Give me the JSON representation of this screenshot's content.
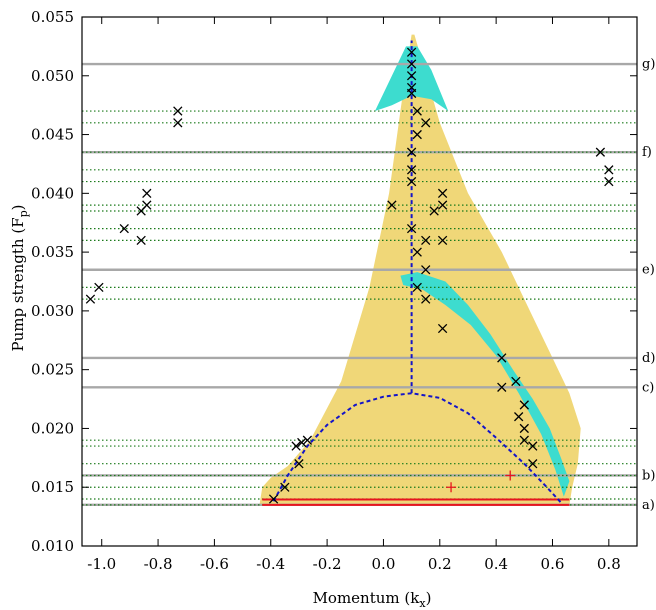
{
  "chart_data": {
    "type": "scatter",
    "xlabel": "Momentum (k",
    "xlabel_sub": "x",
    "xlabel_end": ")",
    "ylabel": "Pump strength (F",
    "ylabel_sub": "p",
    "ylabel_end": ")",
    "xlim": [
      -1.07,
      0.9
    ],
    "ylim": [
      0.01,
      0.055
    ],
    "xticks": [
      -1.0,
      -0.8,
      -0.6,
      -0.4,
      -0.2,
      0.0,
      0.2,
      0.4,
      0.6,
      0.8
    ],
    "xtick_labels": [
      "-1.0",
      "-0.8",
      "-0.6",
      "-0.4",
      "-0.2",
      "0.0",
      "0.2",
      "0.4",
      "0.6",
      "0.8"
    ],
    "yticks": [
      0.01,
      0.015,
      0.02,
      0.025,
      0.03,
      0.035,
      0.04,
      0.045,
      0.05,
      0.055
    ],
    "ytick_labels": [
      "0.010",
      "0.015",
      "0.020",
      "0.025",
      "0.030",
      "0.035",
      "0.040",
      "0.045",
      "0.050",
      "0.055"
    ],
    "colors": {
      "region": "#f0d778",
      "teal": "#3ddccf",
      "blue_dashed": "#1414c8",
      "gray_lines": "#a8a8a8",
      "green_dotted": "#1a7a1a",
      "markers": "#000000",
      "red": "#e8141e"
    },
    "stable_region": [
      [
        -0.44,
        0.0135
      ],
      [
        -0.43,
        0.015
      ],
      [
        -0.4,
        0.0158
      ],
      [
        -0.34,
        0.0168
      ],
      [
        -0.26,
        0.019
      ],
      [
        -0.15,
        0.024
      ],
      [
        -0.05,
        0.032
      ],
      [
        0.02,
        0.04
      ],
      [
        0.06,
        0.047
      ],
      [
        0.09,
        0.052
      ],
      [
        0.1,
        0.0535
      ],
      [
        0.11,
        0.0535
      ],
      [
        0.14,
        0.051
      ],
      [
        0.2,
        0.046
      ],
      [
        0.3,
        0.04
      ],
      [
        0.42,
        0.035
      ],
      [
        0.52,
        0.03
      ],
      [
        0.6,
        0.026
      ],
      [
        0.66,
        0.023
      ],
      [
        0.7,
        0.02
      ],
      [
        0.69,
        0.017
      ],
      [
        0.67,
        0.015
      ],
      [
        0.66,
        0.0135
      ]
    ],
    "teal_regions": [
      [
        [
          -0.03,
          0.047
        ],
        [
          0.03,
          0.05
        ],
        [
          0.08,
          0.0525
        ],
        [
          0.12,
          0.0525
        ],
        [
          0.17,
          0.0505
        ],
        [
          0.23,
          0.047
        ],
        [
          0.17,
          0.048
        ],
        [
          0.1,
          0.0483
        ],
        [
          0.03,
          0.0475
        ]
      ],
      [
        [
          0.06,
          0.033
        ],
        [
          0.12,
          0.0333
        ],
        [
          0.22,
          0.0325
        ],
        [
          0.3,
          0.0305
        ],
        [
          0.38,
          0.028
        ],
        [
          0.46,
          0.025
        ],
        [
          0.53,
          0.0225
        ],
        [
          0.59,
          0.02
        ],
        [
          0.63,
          0.0175
        ],
        [
          0.66,
          0.0155
        ],
        [
          0.64,
          0.0142
        ],
        [
          0.61,
          0.0165
        ],
        [
          0.56,
          0.0195
        ],
        [
          0.48,
          0.023
        ],
        [
          0.4,
          0.0262
        ],
        [
          0.31,
          0.0288
        ],
        [
          0.22,
          0.0305
        ],
        [
          0.14,
          0.0318
        ],
        [
          0.07,
          0.0322
        ]
      ]
    ],
    "blue_vertical": {
      "x": 0.1,
      "y": [
        0.023,
        0.053
      ]
    },
    "blue_arc": [
      [
        -0.39,
        0.0138
      ],
      [
        -0.34,
        0.016
      ],
      [
        -0.27,
        0.0185
      ],
      [
        -0.2,
        0.0203
      ],
      [
        -0.1,
        0.022
      ],
      [
        0.0,
        0.0227
      ],
      [
        0.1,
        0.023
      ],
      [
        0.2,
        0.0226
      ],
      [
        0.3,
        0.0213
      ],
      [
        0.4,
        0.0192
      ],
      [
        0.5,
        0.017
      ],
      [
        0.58,
        0.015
      ],
      [
        0.63,
        0.0137
      ]
    ],
    "gray_lines": [
      0.051,
      0.0435,
      0.0335,
      0.026,
      0.0235,
      0.016,
      0.0135
    ],
    "green_lines": [
      0.047,
      0.046,
      0.0435,
      0.042,
      0.041,
      0.039,
      0.0385,
      0.037,
      0.036,
      0.032,
      0.031,
      0.019,
      0.0185,
      0.017,
      0.016,
      0.015,
      0.014,
      0.0135
    ],
    "x_markers": [
      [
        0.1,
        0.052
      ],
      [
        0.1,
        0.051
      ],
      [
        0.1,
        0.05
      ],
      [
        0.1,
        0.049
      ],
      [
        0.1,
        0.0485
      ],
      [
        0.12,
        0.047
      ],
      [
        0.15,
        0.046
      ],
      [
        0.12,
        0.045
      ],
      [
        0.1,
        0.0435
      ],
      [
        0.1,
        0.042
      ],
      [
        0.1,
        0.041
      ],
      [
        0.03,
        0.039
      ],
      [
        0.21,
        0.04
      ],
      [
        0.21,
        0.039
      ],
      [
        0.18,
        0.0385
      ],
      [
        0.1,
        0.037
      ],
      [
        0.21,
        0.036
      ],
      [
        0.15,
        0.036
      ],
      [
        0.12,
        0.035
      ],
      [
        0.15,
        0.0335
      ],
      [
        0.12,
        0.032
      ],
      [
        0.15,
        0.031
      ],
      [
        0.21,
        0.0285
      ],
      [
        0.42,
        0.026
      ],
      [
        0.47,
        0.024
      ],
      [
        0.42,
        0.0235
      ],
      [
        0.5,
        0.022
      ],
      [
        0.48,
        0.021
      ],
      [
        0.5,
        0.02
      ],
      [
        0.5,
        0.019
      ],
      [
        0.53,
        0.0185
      ],
      [
        0.53,
        0.017
      ],
      [
        -0.27,
        0.019
      ],
      [
        -0.29,
        0.0188
      ],
      [
        -0.31,
        0.0185
      ],
      [
        -0.3,
        0.017
      ],
      [
        -0.35,
        0.015
      ],
      [
        -0.39,
        0.014
      ],
      [
        -0.73,
        0.047
      ],
      [
        -0.73,
        0.046
      ],
      [
        -0.84,
        0.04
      ],
      [
        -0.84,
        0.039
      ],
      [
        -0.86,
        0.0385
      ],
      [
        -0.92,
        0.037
      ],
      [
        -0.86,
        0.036
      ],
      [
        -1.01,
        0.032
      ],
      [
        -1.04,
        0.031
      ],
      [
        0.77,
        0.0435
      ],
      [
        0.8,
        0.042
      ],
      [
        0.8,
        0.041
      ]
    ],
    "red_plus": [
      [
        0.24,
        0.015
      ],
      [
        0.45,
        0.016
      ]
    ],
    "red_line": {
      "y": [
        0.0135,
        0.0137
      ],
      "x": [
        -0.43,
        0.66
      ]
    },
    "annotations": [
      {
        "y": 0.051,
        "label": "g)"
      },
      {
        "y": 0.0435,
        "label": "f)"
      },
      {
        "y": 0.0335,
        "label": "e)"
      },
      {
        "y": 0.026,
        "label": "d)"
      },
      {
        "y": 0.0235,
        "label": "c)"
      },
      {
        "y": 0.016,
        "label": "b)"
      },
      {
        "y": 0.0135,
        "label": "a)"
      }
    ]
  }
}
